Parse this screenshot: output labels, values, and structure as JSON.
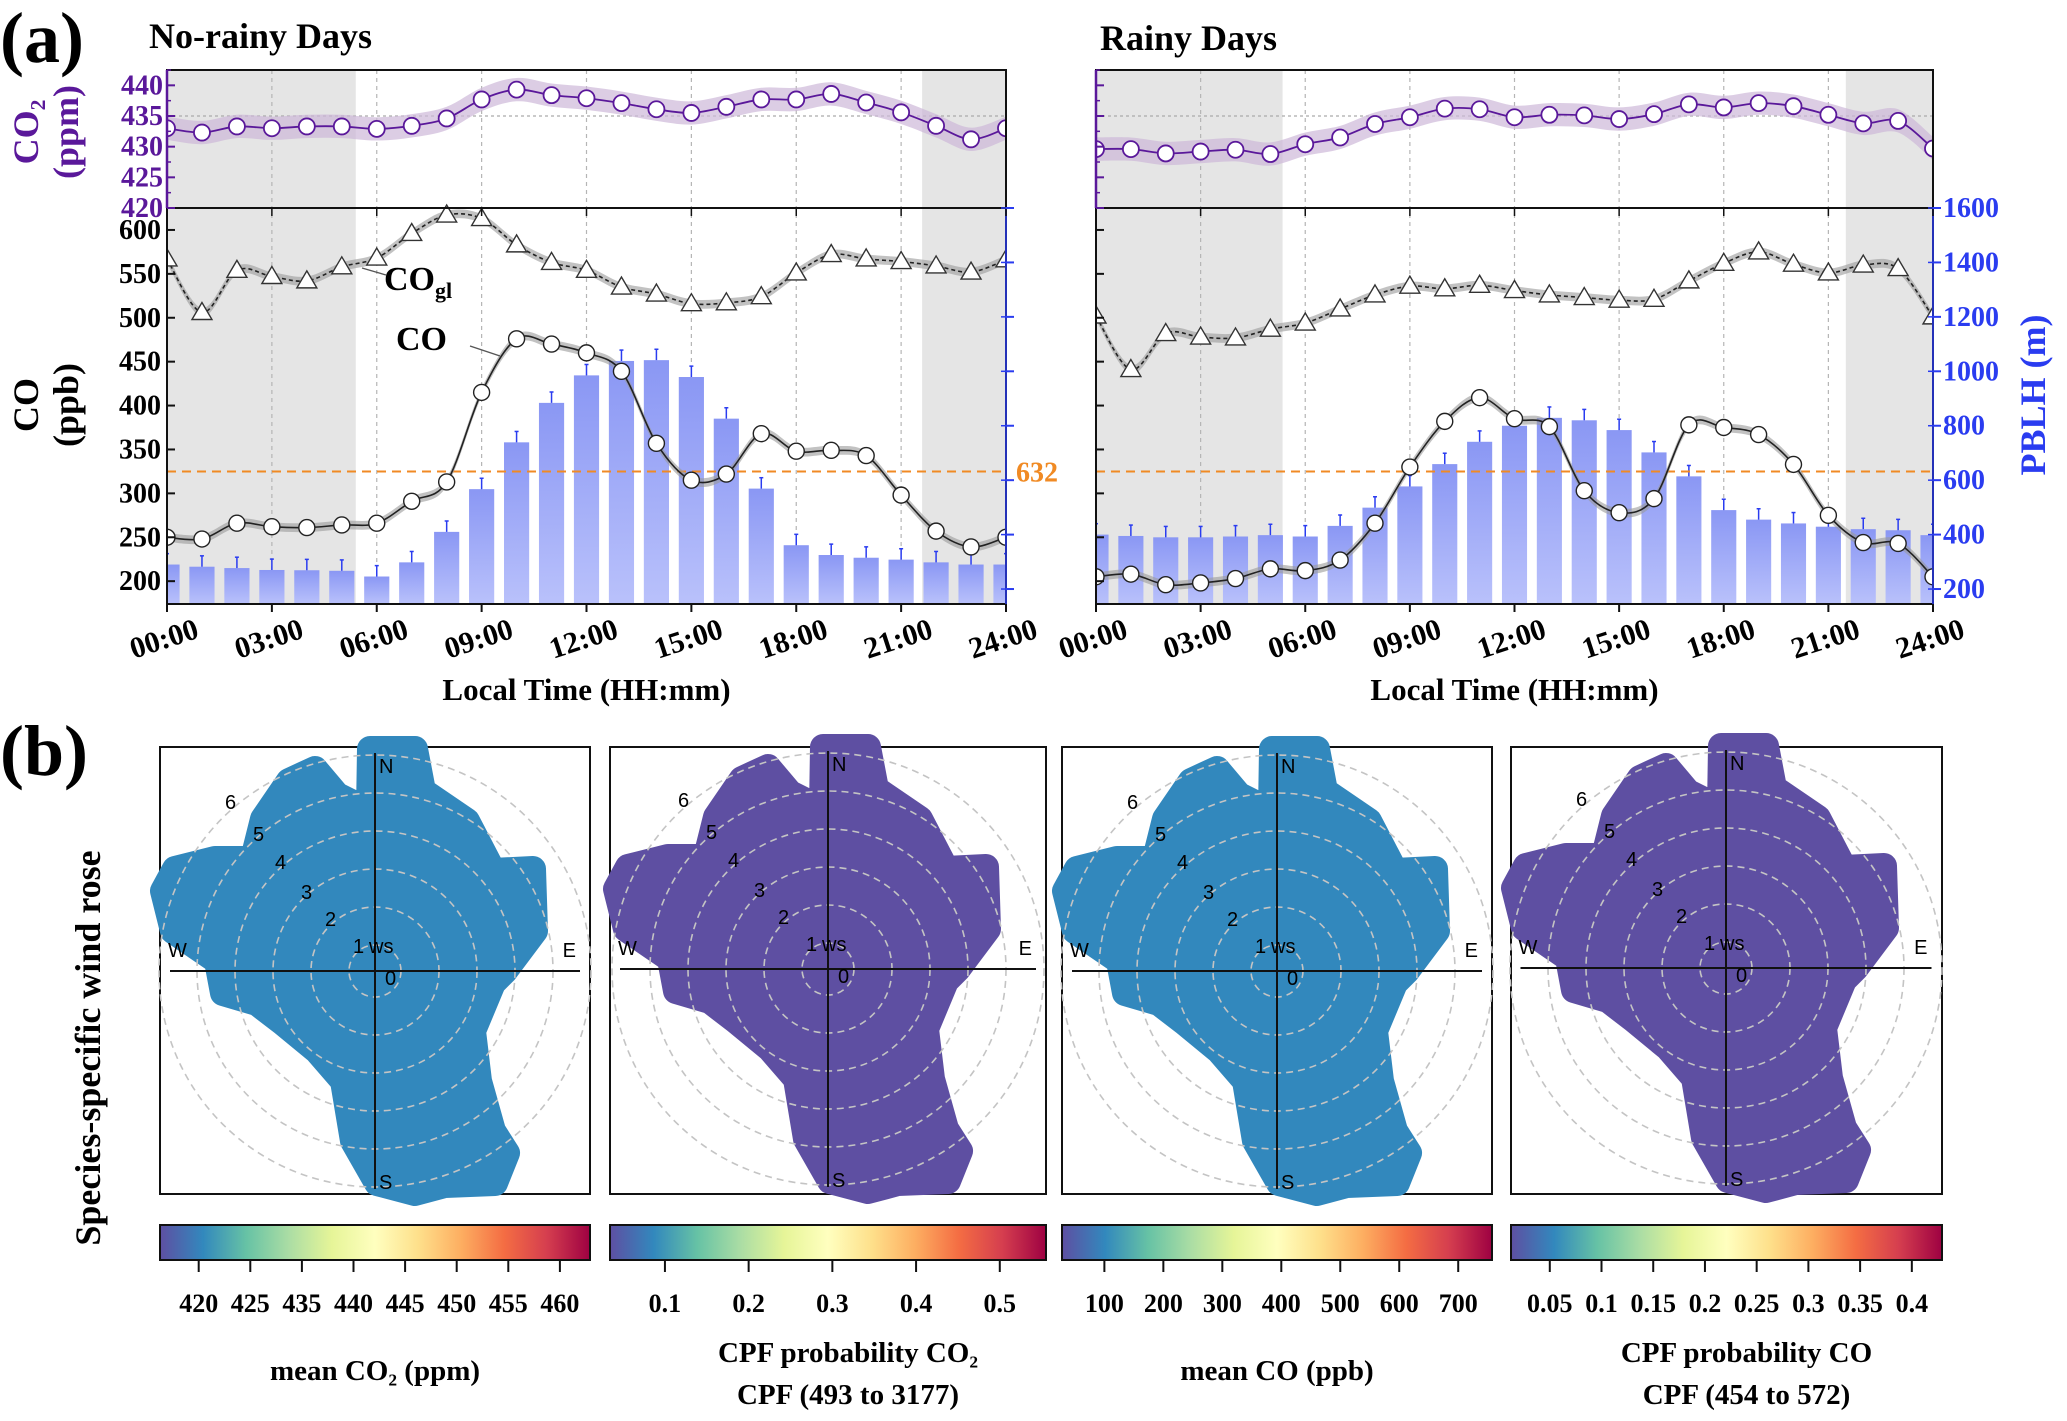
{
  "figure": {
    "panel_a_label": "(a)",
    "panel_b_label": "(b)",
    "panel_b_side_label": "Species-specific wind rose"
  },
  "colors": {
    "co2": "#5a189a",
    "co2_band": "#cdb8d9",
    "co": "#222222",
    "co_band": "#9a9a9a",
    "pblh_bar": "#8f9cf5",
    "pblh_axis": "#2a3cf0",
    "threshold": "#f08a24",
    "night": "#e5e5e5",
    "colormap": [
      "#5e4fa2",
      "#3288bd",
      "#66c2a5",
      "#abdda4",
      "#e6f598",
      "#ffffbf",
      "#fee08b",
      "#fdae61",
      "#f46d43",
      "#d53e4f",
      "#9e0142"
    ]
  },
  "chart_data": [
    {
      "type": "line",
      "title": "No-rainy Days",
      "x_hours": [
        0,
        1,
        2,
        3,
        4,
        5,
        6,
        7,
        8,
        9,
        10,
        11,
        12,
        13,
        14,
        15,
        16,
        17,
        18,
        19,
        20,
        21,
        22,
        23,
        24
      ],
      "xticks": [
        "00:00",
        "03:00",
        "06:00",
        "09:00",
        "12:00",
        "15:00",
        "18:00",
        "21:00",
        "24:00"
      ],
      "xlabel": "Local Time (HH:mm)",
      "night_shading_hours": [
        [
          0,
          5.4
        ],
        [
          21.6,
          24
        ]
      ],
      "co2": {
        "ylabel": [
          "CO₂",
          "(ppm)"
        ],
        "ylim": [
          420,
          442.5
        ],
        "yticks": [
          420,
          425,
          430,
          435,
          440
        ],
        "show_tick_labels": true,
        "reference_line": 435,
        "values": [
          433.0,
          432.3,
          433.3,
          433.0,
          433.3,
          433.3,
          432.9,
          433.4,
          434.6,
          437.7,
          439.3,
          438.4,
          437.9,
          437.1,
          436.1,
          435.5,
          436.5,
          437.7,
          437.7,
          438.6,
          437.2,
          435.6,
          433.4,
          431.2,
          433.0
        ]
      },
      "co": {
        "ylabel": [
          "CO",
          "(ppb)"
        ],
        "ylim": [
          174,
          625
        ],
        "yticks": [
          200,
          250,
          300,
          350,
          400,
          450,
          500,
          550,
          600
        ],
        "show_tick_labels": true,
        "series": [
          {
            "name": "CO",
            "marker": "circle",
            "values": [
              250,
              248,
              266,
              262,
              261,
              264,
              266,
              291,
              313,
              415,
              476,
              470,
              460,
              439,
              357,
              315,
              322,
              368,
              348,
              349,
              343,
              298,
              257,
              239,
              250
            ]
          },
          {
            "name": "COgl",
            "marker": "triangle",
            "values": [
              567,
              506,
              554,
              547,
              542,
              558,
              568,
              596,
              617,
              613,
              583,
              563,
              554,
              535,
              527,
              516,
              517,
              524,
              551,
              572,
              567,
              564,
              559,
              552,
              566
            ]
          }
        ]
      },
      "pblh": {
        "ylabel": "",
        "ylim": [
          145,
          1600
        ],
        "yticks": [
          200,
          400,
          600,
          800,
          1000,
          1200,
          1400,
          1600
        ],
        "show_tick_labels": false,
        "type": "bar",
        "values": [
          290,
          282,
          277,
          270,
          269,
          267,
          246,
          298,
          410,
          567,
          739,
          884,
          985,
          1038,
          1041,
          979,
          826,
          569,
          361,
          325,
          315,
          308,
          298,
          290,
          290
        ],
        "threshold": 632,
        "threshold_label": "632"
      }
    },
    {
      "type": "line",
      "title": "Rainy Days",
      "x_hours": [
        0,
        1,
        2,
        3,
        4,
        5,
        6,
        7,
        8,
        9,
        10,
        11,
        12,
        13,
        14,
        15,
        16,
        17,
        18,
        19,
        20,
        21,
        22,
        23,
        24
      ],
      "xticks": [
        "00:00",
        "03:00",
        "06:00",
        "09:00",
        "12:00",
        "15:00",
        "18:00",
        "21:00",
        "24:00"
      ],
      "xlabel": "Local Time (HH:mm)",
      "night_shading_hours": [
        [
          0,
          5.35
        ],
        [
          21.5,
          24
        ]
      ],
      "co2": {
        "ylabel": "",
        "ylim": [
          420,
          442.5
        ],
        "yticks": [
          420,
          425,
          430,
          435,
          440
        ],
        "show_tick_labels": false,
        "reference_line": 435,
        "values": [
          429.6,
          429.6,
          428.9,
          429.2,
          429.5,
          428.8,
          430.4,
          431.5,
          433.7,
          434.8,
          436.2,
          436.1,
          434.8,
          435.2,
          435.1,
          434.5,
          435.3,
          436.9,
          436.4,
          437.1,
          436.6,
          435.2,
          433.8,
          434.2,
          429.7
        ]
      },
      "co": {
        "ylabel": "",
        "ylim": [
          174,
          625
        ],
        "yticks": [
          200,
          250,
          300,
          350,
          400,
          450,
          500,
          550,
          600
        ],
        "show_tick_labels": false,
        "series": [
          {
            "name": "CO",
            "marker": "circle",
            "values": [
              205,
              208,
              196,
              198,
              203,
              214,
              212,
              224,
              266,
              330,
              382,
              409,
              385,
              376,
              303,
              278,
              294,
              378,
              375,
              367,
              333,
              275,
              244,
              243,
              205
            ]
          },
          {
            "name": "COgl",
            "marker": "triangle",
            "values": [
              502,
              441,
              482,
              478,
              477,
              487,
              494,
              510,
              526,
              536,
              533,
              537,
              531,
              526,
              523,
              520,
              521,
              542,
              562,
              575,
              561,
              551,
              560,
              556,
              501
            ]
          }
        ]
      },
      "pblh": {
        "ylabel": "PBLH (m)",
        "ylim": [
          145,
          1600
        ],
        "yticks": [
          200,
          400,
          600,
          800,
          1000,
          1200,
          1400,
          1600
        ],
        "show_tick_labels": true,
        "type": "bar",
        "values": [
          400,
          395,
          390,
          390,
          393,
          398,
          393,
          432,
          499,
          577,
          659,
          741,
          800,
          829,
          820,
          784,
          702,
          614,
          490,
          455,
          441,
          429,
          420,
          416,
          398
        ],
        "threshold": 632,
        "threshold_label": ""
      }
    },
    {
      "type": "heatmap",
      "subtype": "polar wind rose",
      "compass": [
        "N",
        "E",
        "S",
        "W"
      ],
      "ring_labels": [
        "0",
        "1",
        "2",
        "3",
        "4",
        "5",
        "6"
      ],
      "ring_unit": "ws",
      "colorbar": {
        "ticks": [
          "420",
          "425",
          "435",
          "440",
          "445",
          "450",
          "455",
          "460"
        ],
        "label": [
          "mean CO₂ (ppm)"
        ]
      },
      "hotspot_direction": "WNW",
      "style": "mean"
    },
    {
      "type": "heatmap",
      "subtype": "polar wind rose",
      "compass": [
        "N",
        "E",
        "S",
        "W"
      ],
      "ring_labels": [
        "0",
        "1",
        "2",
        "3",
        "4",
        "5",
        "6"
      ],
      "ring_unit": "ws",
      "colorbar": {
        "ticks": [
          "0.1",
          "0.2",
          "0.3",
          "0.4",
          "0.5"
        ],
        "label": [
          "CPF probability CO₂",
          "CPF (493 to 3177)"
        ]
      },
      "hotspot_direction": "W",
      "style": "cpf"
    },
    {
      "type": "heatmap",
      "subtype": "polar wind rose",
      "compass": [
        "N",
        "E",
        "S",
        "W"
      ],
      "ring_labels": [
        "0",
        "1",
        "2",
        "3",
        "4",
        "5",
        "6"
      ],
      "ring_unit": "ws",
      "colorbar": {
        "ticks": [
          "100",
          "200",
          "300",
          "400",
          "500",
          "600",
          "700"
        ],
        "label": [
          "mean CO (ppb)"
        ]
      },
      "hotspot_direction": "WNW",
      "style": "mean"
    },
    {
      "type": "heatmap",
      "subtype": "polar wind rose",
      "compass": [
        "N",
        "E",
        "S",
        "W"
      ],
      "ring_labels": [
        "0",
        "1",
        "2",
        "3",
        "4",
        "5",
        "6"
      ],
      "ring_unit": "ws",
      "colorbar": {
        "ticks": [
          "0.05",
          "0.1",
          "0.15",
          "0.2",
          "0.25",
          "0.3",
          "0.35",
          "0.4"
        ],
        "label": [
          "CPF probability CO",
          "CPF (454 to 572)"
        ]
      },
      "hotspot_direction": "WNW",
      "style": "cpf"
    }
  ]
}
